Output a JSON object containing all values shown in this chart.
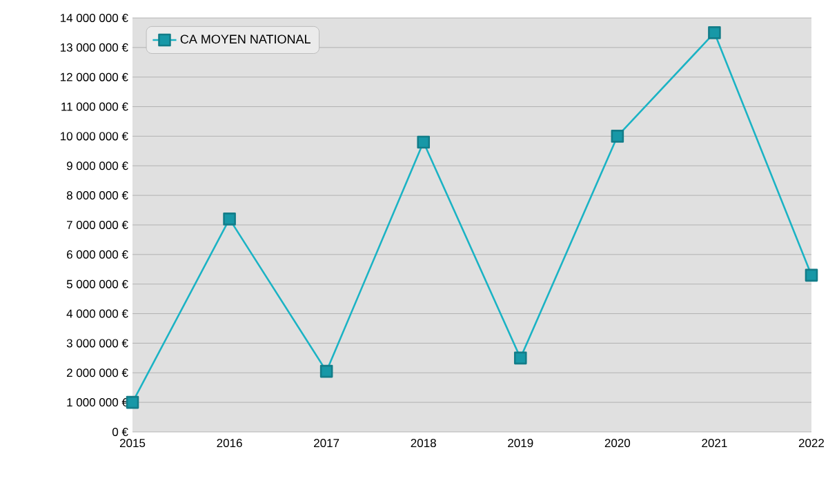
{
  "chart_data": {
    "type": "line",
    "categories": [
      "2015",
      "2016",
      "2017",
      "2018",
      "2019",
      "2020",
      "2021",
      "2022"
    ],
    "series": [
      {
        "name": "CA MOYEN NATIONAL",
        "color": "#1bb3c4",
        "values": [
          1000000,
          7200000,
          2050000,
          9800000,
          2500000,
          10000000,
          13500000,
          5300000
        ]
      }
    ],
    "ylim": [
      0,
      14000000
    ],
    "yticks": [
      {
        "value": 0,
        "label": "0 €"
      },
      {
        "value": 1000000,
        "label": "1 000 000 €"
      },
      {
        "value": 2000000,
        "label": "2 000 000 €"
      },
      {
        "value": 3000000,
        "label": "3 000 000 €"
      },
      {
        "value": 4000000,
        "label": "4 000 000 €"
      },
      {
        "value": 5000000,
        "label": "5 000 000 €"
      },
      {
        "value": 6000000,
        "label": "6 000 000 €"
      },
      {
        "value": 7000000,
        "label": "7 000 000 €"
      },
      {
        "value": 8000000,
        "label": "8 000 000 €"
      },
      {
        "value": 9000000,
        "label": "9 000 000 €"
      },
      {
        "value": 10000000,
        "label": "10 000 000 €"
      },
      {
        "value": 11000000,
        "label": "11 000 000 €"
      },
      {
        "value": 12000000,
        "label": "12 000 000 €"
      },
      {
        "value": 13000000,
        "label": "13 000 000 €"
      },
      {
        "value": 14000000,
        "label": "14 000 000 €"
      }
    ],
    "grid": "y",
    "legend": "top left",
    "marker": "square",
    "line_style": "solid"
  }
}
